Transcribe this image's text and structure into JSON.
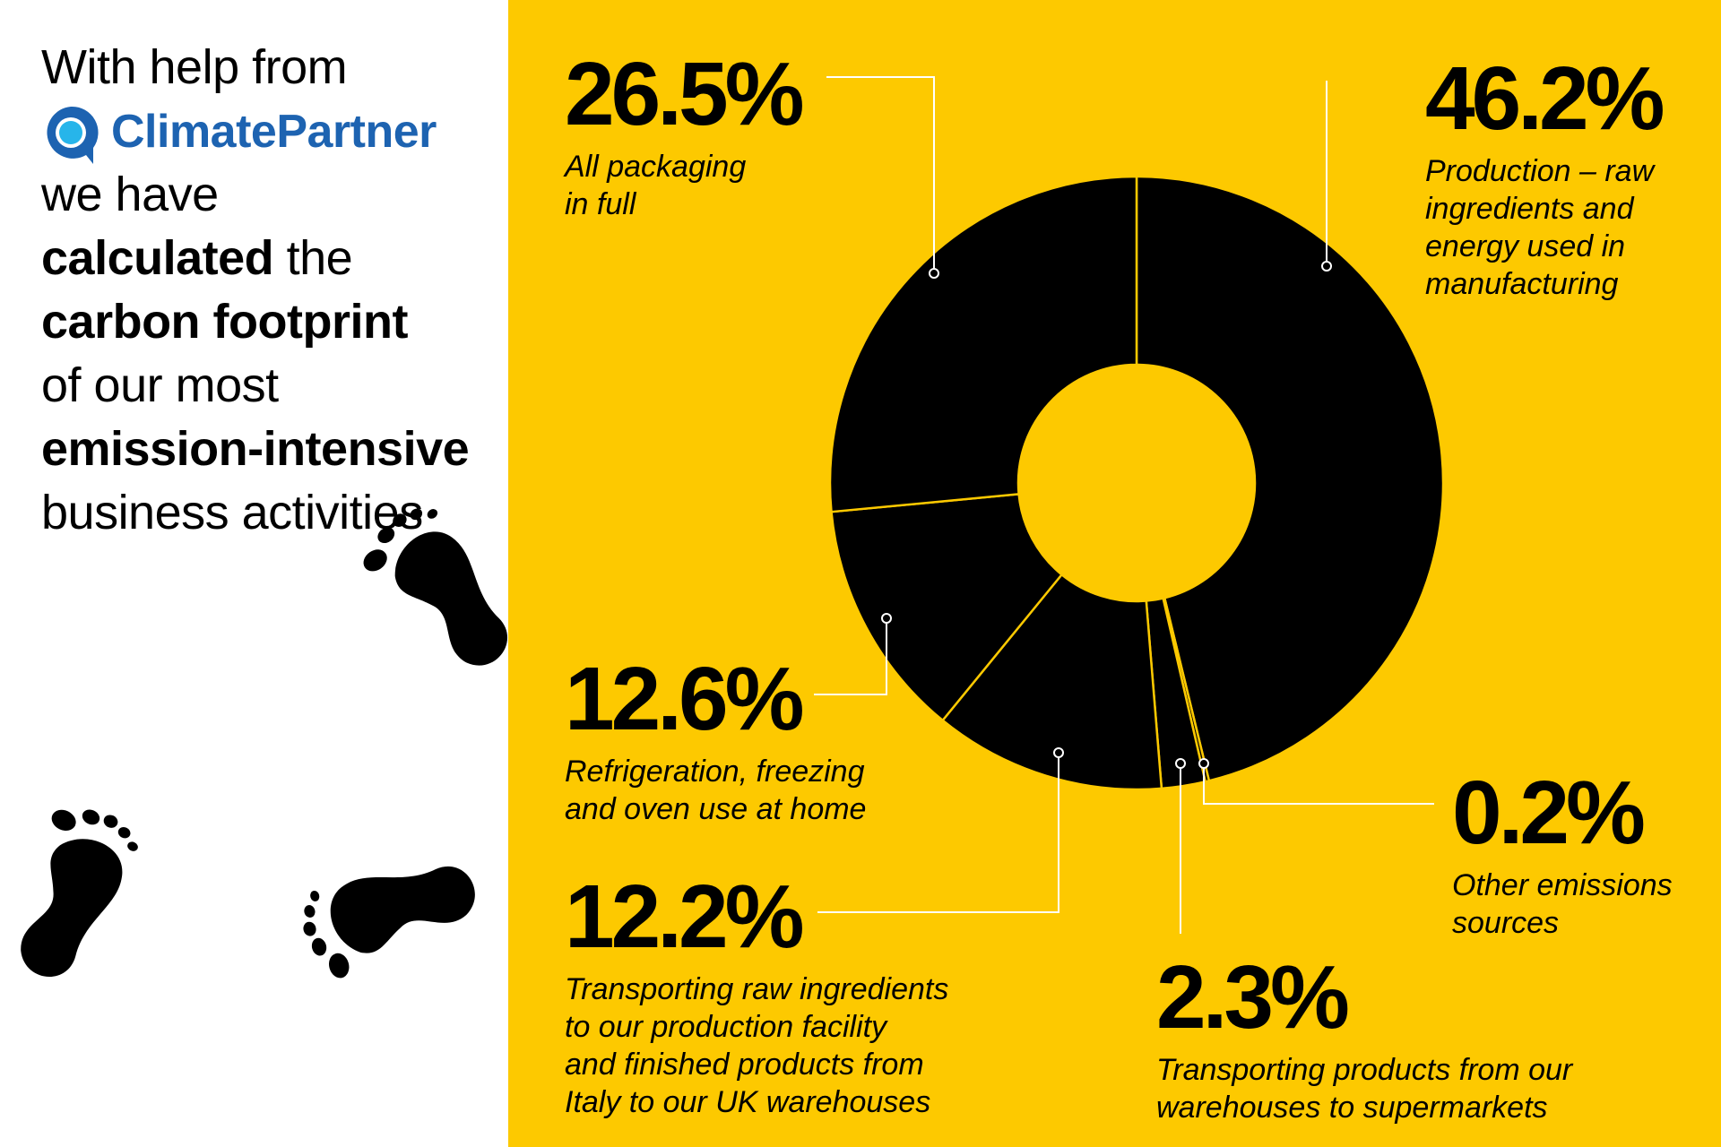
{
  "intro": {
    "line1": "With help from",
    "logo_name": "ClimatePartner",
    "line2": "we have",
    "line3_bold": "calculated",
    "line3_rest": " the",
    "line4_bold": "carbon footprint",
    "line5": "of our most",
    "line6_bold": "emission-intensive",
    "line7": "business activities"
  },
  "colors": {
    "background_right": "#fdc900",
    "background_left": "#ffffff",
    "slice": "#000000",
    "slice_divider": "#fdc900",
    "leader_lines": "#ffffff",
    "logo_blue": "#1d63b1",
    "logo_cyan": "#27b5ea"
  },
  "icons": [
    "footprint-icon",
    "climatepartner-logo-icon"
  ],
  "chart_data": {
    "type": "pie",
    "style": "donut",
    "categories": [
      "Production – raw ingredients and energy used in manufacturing",
      "Other emissions sources",
      "Transporting products from our warehouses to supermarkets",
      "Transporting raw ingredients to our production facility and finished products from Italy to our UK warehouses",
      "Refrigeration, freezing and oven use at home",
      "All packaging in full"
    ],
    "values": [
      46.2,
      0.2,
      2.3,
      12.2,
      12.6,
      26.5
    ],
    "value_labels": [
      "46.2%",
      "0.2%",
      "2.3%",
      "12.2%",
      "12.6%",
      "26.5%"
    ],
    "descriptions": [
      "Production – raw\ningredients and\nenergy used in\nmanufacturing",
      "Other emissions\nsources",
      "Transporting products from our\nwarehouses to supermarkets",
      "Transporting raw ingredients\nto our production facility\nand finished products from\nItaly to our UK warehouses",
      "Refrigeration, freezing\nand oven use at home",
      "All packaging\nin full"
    ],
    "title": "",
    "legend": "none"
  }
}
